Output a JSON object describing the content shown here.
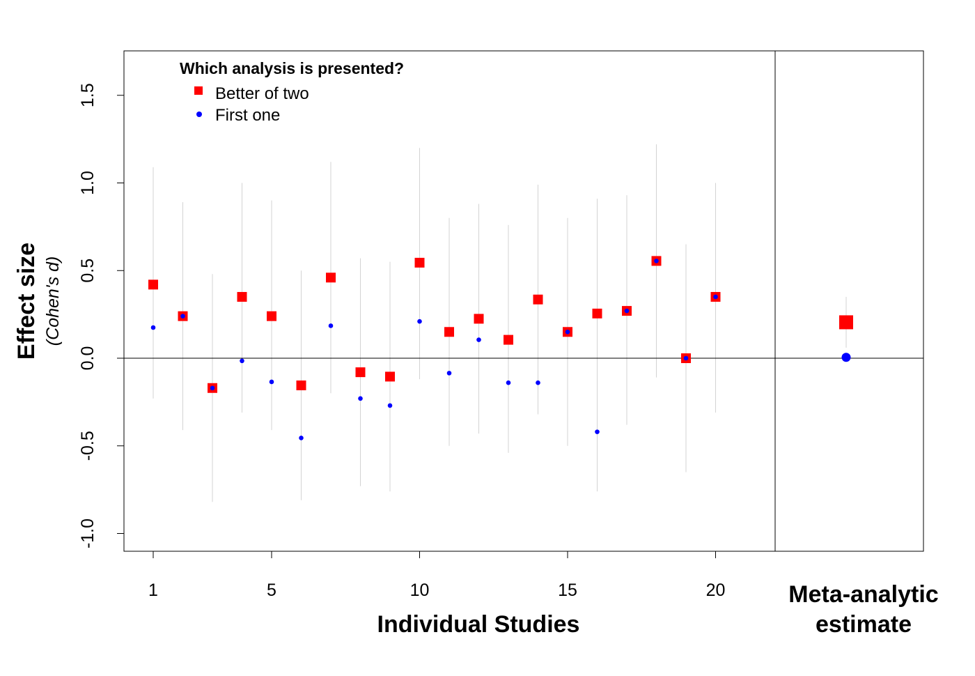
{
  "chart_data": {
    "type": "scatter",
    "xlabel": "Individual Studies",
    "ylabel": "Effect size",
    "ylabel_sub": "(Cohen's d)",
    "meta_label_line1": "Meta-analytic",
    "meta_label_line2": "estimate",
    "x_ticks": [
      "1",
      "5",
      "10",
      "15",
      "20"
    ],
    "y_ticks": [
      "-1.0",
      "-0.5",
      "0.0",
      "0.5",
      "1.0",
      "1.5"
    ],
    "ylim": [
      -1.1,
      1.75
    ],
    "xlim": [
      -1,
      21
    ],
    "grid": false,
    "reference_line_y": 0,
    "legend": {
      "title": "Which analysis is presented?",
      "position": "top-left",
      "entries": [
        {
          "label": "Better of two",
          "marker": "square",
          "color": "#ff0000"
        },
        {
          "label": "First one",
          "marker": "circle",
          "color": "#0000ff"
        }
      ]
    },
    "studies": [
      1,
      2,
      3,
      4,
      5,
      6,
      7,
      8,
      9,
      10,
      11,
      12,
      13,
      14,
      15,
      16,
      17,
      18,
      19,
      20
    ],
    "series": [
      {
        "name": "Better of two",
        "values": [
          0.42,
          0.24,
          -0.17,
          0.35,
          0.24,
          -0.155,
          0.46,
          -0.08,
          -0.105,
          0.545,
          0.15,
          0.225,
          0.105,
          0.335,
          0.15,
          0.255,
          0.27,
          0.555,
          0.0,
          0.35
        ]
      },
      {
        "name": "First one",
        "values": [
          0.175,
          0.24,
          -0.17,
          -0.015,
          -0.135,
          -0.455,
          0.185,
          -0.23,
          -0.27,
          0.21,
          -0.085,
          0.105,
          -0.14,
          -0.14,
          0.15,
          -0.42,
          0.27,
          0.555,
          0.0,
          0.35
        ]
      }
    ],
    "ci_lower": [
      -0.23,
      -0.41,
      -0.82,
      -0.31,
      -0.41,
      -0.81,
      -0.2,
      -0.73,
      -0.76,
      -0.12,
      -0.5,
      -0.43,
      -0.54,
      -0.32,
      -0.5,
      -0.76,
      -0.38,
      -0.11,
      -0.65,
      -0.31
    ],
    "ci_upper": [
      1.09,
      0.89,
      0.48,
      1.0,
      0.9,
      0.5,
      1.12,
      0.57,
      0.55,
      1.2,
      0.8,
      0.88,
      0.76,
      0.99,
      0.8,
      0.91,
      0.93,
      1.22,
      0.65,
      1.0
    ],
    "meta": {
      "better_of_two": {
        "value": 0.205,
        "ci": [
          0.06,
          0.35
        ]
      },
      "first_one": {
        "value": 0.005
      }
    },
    "colors": {
      "better_of_two": "#ff0000",
      "first_one": "#0000ff",
      "ci": "#d3d3d3"
    }
  }
}
